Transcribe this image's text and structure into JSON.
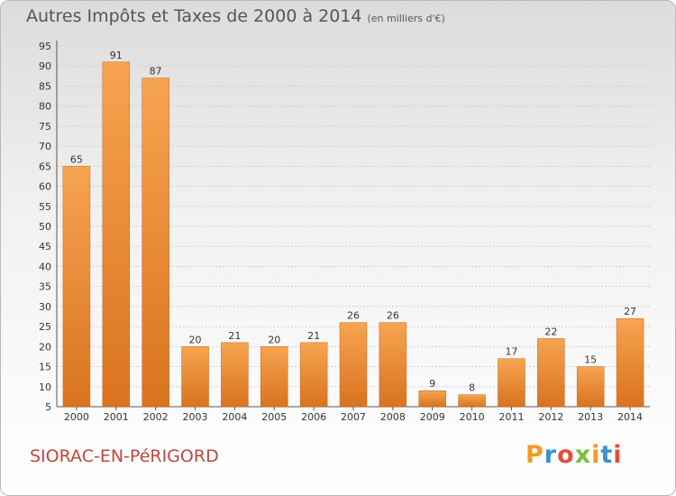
{
  "header": {
    "title": "Autres Impôts et Taxes de 2000 à 2014",
    "unit": "(en milliers d'€)"
  },
  "footer": {
    "commune": "SIORAC-EN-PéRIGORD",
    "brand_letters": [
      "P",
      "r",
      "o",
      "x",
      "i",
      "t",
      "i"
    ],
    "brand_colors": [
      "#f39a1e",
      "#3a8fd6",
      "#e94b3c",
      "#7bbf3a",
      "#f39a1e",
      "#3a8fd6",
      "#e94b3c"
    ]
  },
  "chart_data": {
    "type": "bar",
    "title": "Autres Impôts et Taxes de 2000 à 2014",
    "ylim": [
      5,
      95
    ],
    "yticks": [
      5,
      10,
      15,
      20,
      25,
      30,
      35,
      40,
      45,
      50,
      55,
      60,
      65,
      70,
      75,
      80,
      85,
      90,
      95
    ],
    "grid": true,
    "bar_color": "#f0973c",
    "categories": [
      "2000",
      "2001",
      "2002",
      "2003",
      "2004",
      "2005",
      "2006",
      "2007",
      "2008",
      "2009",
      "2010",
      "2011",
      "2012",
      "2013",
      "2014"
    ],
    "values": [
      65,
      91,
      87,
      20,
      21,
      20,
      21,
      26,
      26,
      9,
      8,
      17,
      22,
      15,
      27
    ]
  }
}
